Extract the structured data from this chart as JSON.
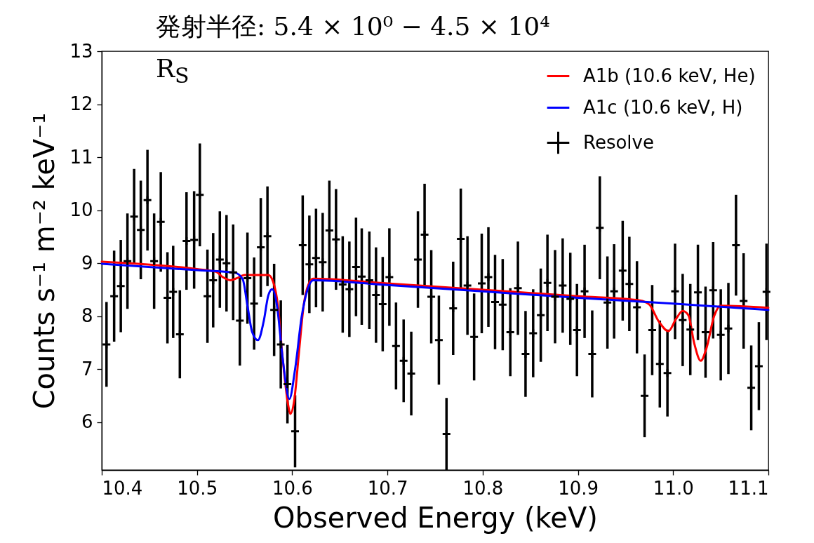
{
  "chart_data": {
    "type": "scatter",
    "title": "発射半径: 5.4 × 10⁰ − 4.5 × 10⁴ R$_{S}$",
    "xlabel": "Observed Energy (keV)",
    "ylabel": "Counts s⁻¹ m⁻² keV⁻¹",
    "xlim": [
      10.4,
      11.1
    ],
    "xticks": [
      10.4,
      10.5,
      10.6,
      10.7,
      10.8,
      10.9,
      {
        "value": 11,
        "label": "11.0"
      },
      11.1
    ],
    "ylim": [
      5.1,
      13
    ],
    "yticks": [
      6,
      7,
      8,
      9,
      10,
      11,
      12,
      13
    ],
    "grid": false,
    "legend": "top right",
    "series": [
      {
        "name": "A1b (10.6 keV, He)",
        "type": "line",
        "color": "#ff0000",
        "x": [
          10.4,
          10.5,
          10.52,
          10.527,
          10.535,
          10.542,
          10.55,
          10.575,
          10.58,
          10.585,
          10.59,
          10.596,
          10.598,
          10.602,
          10.607,
          10.612,
          10.617,
          10.622,
          10.7,
          10.8,
          10.9,
          10.965,
          10.975,
          10.985,
          10.995,
          11.003,
          11.01,
          11.016,
          11.022,
          11.029,
          11.035,
          11.043,
          11.05,
          11.1
        ],
        "values": [
          9.03,
          8.89,
          8.84,
          8.74,
          8.68,
          8.72,
          8.78,
          8.78,
          8.65,
          8.2,
          7.2,
          6.3,
          6.16,
          6.4,
          7.3,
          8.2,
          8.6,
          8.71,
          8.62,
          8.5,
          8.38,
          8.3,
          8.22,
          7.9,
          7.72,
          7.95,
          8.1,
          8.02,
          7.5,
          7.16,
          7.4,
          8.0,
          8.2,
          8.16
        ]
      },
      {
        "name": "A1c (10.6 keV, H)",
        "type": "line",
        "color": "#0000ff",
        "x": [
          10.4,
          10.5,
          10.54,
          10.548,
          10.553,
          10.558,
          10.564,
          10.57,
          10.575,
          10.579,
          10.584,
          10.59,
          10.597,
          10.603,
          10.61,
          10.616,
          10.622,
          10.7,
          10.8,
          10.9,
          11.0,
          11.1
        ],
        "values": [
          8.99,
          8.87,
          8.82,
          8.7,
          8.2,
          7.7,
          7.55,
          7.9,
          8.4,
          8.51,
          8.2,
          7.2,
          6.44,
          7.0,
          8.0,
          8.5,
          8.68,
          8.59,
          8.47,
          8.35,
          8.24,
          8.12
        ]
      },
      {
        "name": "Resolve",
        "color": "#000000",
        "marker": "cross",
        "x": [
          10.405,
          10.413,
          10.42,
          10.427,
          10.434,
          10.441,
          10.448,
          10.455,
          10.462,
          10.469,
          10.475,
          10.482,
          10.489,
          10.497,
          10.503,
          10.511,
          10.517,
          10.524,
          10.531,
          10.538,
          10.545,
          10.553,
          10.56,
          10.567,
          10.574,
          10.581,
          10.588,
          10.595,
          10.603,
          10.611,
          10.618,
          10.625,
          10.632,
          10.639,
          10.646,
          10.653,
          10.66,
          10.667,
          10.673,
          10.681,
          10.688,
          10.695,
          10.702,
          10.709,
          10.717,
          10.725,
          10.732,
          10.739,
          10.746,
          10.754,
          10.762,
          10.769,
          10.777,
          10.784,
          10.791,
          10.799,
          10.806,
          10.813,
          10.821,
          10.829,
          10.837,
          10.845,
          10.853,
          10.861,
          10.868,
          10.876,
          10.884,
          10.892,
          10.899,
          10.907,
          10.915,
          10.923,
          10.931,
          10.938,
          10.947,
          10.954,
          10.962,
          10.97,
          10.978,
          10.986,
          10.994,
          11.002,
          11.01,
          11.018,
          11.026,
          11.034,
          11.042,
          11.05,
          11.058,
          11.066,
          11.074,
          11.082,
          11.09,
          11.098
        ],
        "values": [
          7.47,
          8.38,
          8.57,
          9.04,
          9.88,
          9.63,
          10.19,
          9.04,
          9.78,
          8.35,
          8.46,
          7.66,
          9.42,
          9.44,
          10.29,
          8.38,
          8.68,
          9.07,
          9.0,
          8.83,
          7.92,
          8.72,
          8.24,
          9.3,
          9.51,
          8.12,
          7.47,
          6.72,
          5.83,
          9.34,
          8.98,
          9.1,
          9.02,
          9.62,
          9.45,
          8.6,
          8.51,
          8.93,
          8.75,
          8.68,
          8.4,
          8.23,
          8.74,
          7.44,
          7.16,
          6.92,
          9.07,
          9.54,
          8.37,
          7.55,
          5.78,
          8.15,
          9.46,
          8.58,
          7.61,
          8.62,
          8.74,
          8.27,
          8.22,
          7.7,
          8.53,
          7.29,
          7.68,
          8.02,
          8.63,
          8.37,
          8.58,
          8.33,
          7.74,
          8.47,
          7.29,
          9.67,
          8.26,
          8.47,
          8.86,
          8.61,
          8.17,
          6.5,
          7.74,
          7.1,
          6.93,
          8.47,
          7.93,
          7.75,
          8.45,
          7.7,
          8.49,
          7.65,
          7.77,
          9.34,
          8.29,
          6.65,
          7.06,
          8.46
        ],
        "errors": [
          0.8,
          0.86,
          0.87,
          0.9,
          0.9,
          0.93,
          0.95,
          0.9,
          0.94,
          0.86,
          0.87,
          0.83,
          0.92,
          0.92,
          0.97,
          0.88,
          0.89,
          0.91,
          0.91,
          0.9,
          0.85,
          0.86,
          0.87,
          0.93,
          0.94,
          0.87,
          0.83,
          0.74,
          0.68,
          0.94,
          0.92,
          0.93,
          0.93,
          0.94,
          0.95,
          0.91,
          0.9,
          0.93,
          0.91,
          0.92,
          0.9,
          0.89,
          0.92,
          0.82,
          0.78,
          0.79,
          0.91,
          0.96,
          0.88,
          0.84,
          0.68,
          0.88,
          0.95,
          0.93,
          0.82,
          0.94,
          0.94,
          0.89,
          0.86,
          0.83,
          0.88,
          0.81,
          0.83,
          0.88,
          0.91,
          0.88,
          0.89,
          0.87,
          0.87,
          0.88,
          0.82,
          0.97,
          0.87,
          0.89,
          0.94,
          0.89,
          0.87,
          0.78,
          0.85,
          0.82,
          0.82,
          0.9,
          0.87,
          0.86,
          0.9,
          0.86,
          0.91,
          0.86,
          0.86,
          0.95,
          0.9,
          0.8,
          0.83,
          0.91
        ]
      }
    ]
  }
}
